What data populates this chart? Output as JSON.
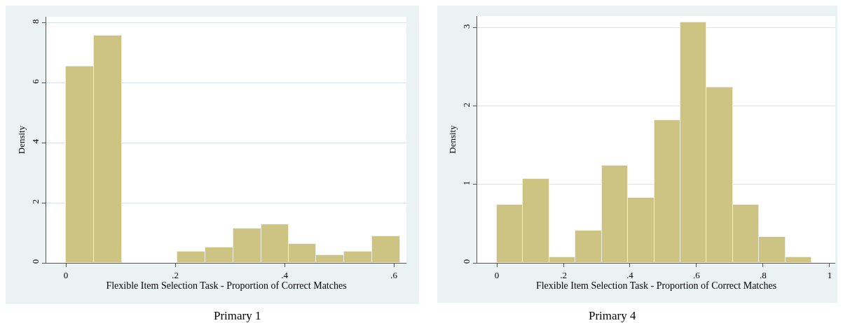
{
  "chart_data": [
    {
      "type": "histogram",
      "xlabel": "Flexible Item Selection Task - Proportion of Correct Matches",
      "ylabel": "Density",
      "annotations": [
        "Primary 1"
      ],
      "color": "#cdc382",
      "bins": [
        0,
        0.051,
        0.102,
        0.204,
        0.255,
        0.306,
        0.357,
        0.407,
        0.458,
        0.509,
        0.56,
        0.611
      ],
      "values": [
        6.54,
        7.57,
        0,
        0.38,
        0.51,
        1.15,
        1.28,
        0.63,
        0.26,
        0.38,
        0.88
      ],
      "xlim": [
        -0.036,
        0.623
      ],
      "xticks": [
        0,
        {
          "value": 0.2,
          "label": ".2"
        },
        {
          "value": 0.4,
          "label": ".4"
        },
        {
          "value": 0.6,
          "label": ".6"
        }
      ],
      "ylim": [
        0,
        8.2
      ],
      "yticks": [
        0,
        2,
        4,
        6,
        8
      ],
      "grid": "y"
    },
    {
      "type": "histogram",
      "xlabel": "Flexible Item Selection Task - Proportion of Correct Matches",
      "ylabel": "Density",
      "annotations": [
        "Primary 4"
      ],
      "color": "#cdc382",
      "bins": [
        0,
        0.0788,
        0.1576,
        0.2364,
        0.3152,
        0.394,
        0.4728,
        0.5516,
        0.6304,
        0.7092,
        0.788,
        0.8668,
        0.9456
      ],
      "values": [
        0.74,
        1.07,
        0.07,
        0.41,
        1.24,
        0.83,
        1.82,
        3.07,
        2.24,
        0.74,
        0.33,
        0.07
      ],
      "xlim": [
        -0.059,
        1.017
      ],
      "xticks": [
        0,
        {
          "value": 0.2,
          "label": ".2"
        },
        {
          "value": 0.4,
          "label": ".4"
        },
        {
          "value": 0.6,
          "label": ".6"
        },
        {
          "value": 0.8,
          "label": ".8"
        },
        1
      ],
      "ylim": [
        0,
        3.15
      ],
      "yticks": [
        0,
        1,
        2,
        3
      ],
      "grid": "y"
    }
  ]
}
